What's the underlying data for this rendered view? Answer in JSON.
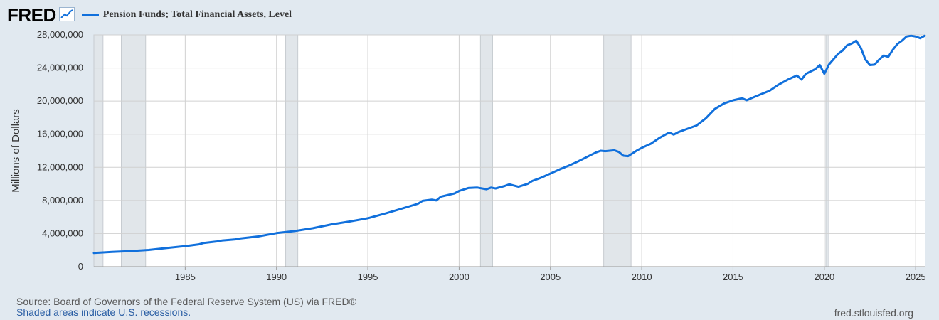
{
  "brand": {
    "logo_text": "FRED"
  },
  "header": {
    "series_label": "Pension Funds; Total Financial Assets, Level",
    "series_color": "#1170dc"
  },
  "footer": {
    "source": "Source: Board of Governors of the Federal Reserve System (US) via FRED®",
    "recession_note": "Shaded areas indicate U.S. recessions.",
    "site": "fred.stlouisfed.org"
  },
  "chart_data": {
    "type": "line",
    "title": "Pension Funds; Total Financial Assets, Level",
    "ylabel": "Millions of Dollars",
    "xlabel": "",
    "xlim": [
      "1980-01-01",
      "2025-07-01"
    ],
    "ylim": [
      0,
      28000000
    ],
    "yticks": [
      0,
      4000000,
      8000000,
      12000000,
      16000000,
      20000000,
      24000000,
      28000000
    ],
    "ytick_labels": [
      "0",
      "4,000,000",
      "8,000,000",
      "12,000,000",
      "16,000,000",
      "20,000,000",
      "24,000,000",
      "28,000,000"
    ],
    "xticks": [
      "1985-01-01",
      "1990-01-01",
      "1995-01-01",
      "2000-01-01",
      "2005-01-01",
      "2010-01-01",
      "2015-01-01",
      "2020-01-01",
      "2025-01-01"
    ],
    "xtick_labels": [
      "1985",
      "1990",
      "1995",
      "2000",
      "2005",
      "2010",
      "2015",
      "2020",
      "2025"
    ],
    "grid": true,
    "recessions": [
      [
        "1980-01-01",
        "1980-07-01"
      ],
      [
        "1981-07-01",
        "1982-11-01"
      ],
      [
        "1990-07-01",
        "1991-03-01"
      ],
      [
        "2001-03-01",
        "2001-11-01"
      ],
      [
        "2007-12-01",
        "2009-06-01"
      ],
      [
        "2020-02-01",
        "2020-04-01"
      ]
    ],
    "series": [
      {
        "name": "Pension Funds; Total Financial Assets, Level",
        "color": "#1170dc",
        "points": [
          [
            "1980-01-01",
            1650000
          ],
          [
            "1981-01-01",
            1780000
          ],
          [
            "1982-01-01",
            1880000
          ],
          [
            "1983-01-01",
            2020000
          ],
          [
            "1984-01-01",
            2250000
          ],
          [
            "1985-01-01",
            2480000
          ],
          [
            "1985-10-01",
            2700000
          ],
          [
            "1986-01-01",
            2850000
          ],
          [
            "1986-10-01",
            3050000
          ],
          [
            "1987-01-01",
            3150000
          ],
          [
            "1987-10-01",
            3300000
          ],
          [
            "1988-01-01",
            3400000
          ],
          [
            "1989-01-01",
            3650000
          ],
          [
            "1990-01-01",
            4050000
          ],
          [
            "1991-01-01",
            4300000
          ],
          [
            "1992-01-01",
            4650000
          ],
          [
            "1993-01-01",
            5100000
          ],
          [
            "1994-01-01",
            5450000
          ],
          [
            "1995-01-01",
            5850000
          ],
          [
            "1996-01-01",
            6450000
          ],
          [
            "1997-01-01",
            7100000
          ],
          [
            "1997-10-01",
            7600000
          ],
          [
            "1998-01-01",
            7950000
          ],
          [
            "1998-07-01",
            8100000
          ],
          [
            "1998-10-01",
            8000000
          ],
          [
            "1999-01-01",
            8450000
          ],
          [
            "1999-10-01",
            8850000
          ],
          [
            "2000-01-01",
            9150000
          ],
          [
            "2000-07-01",
            9500000
          ],
          [
            "2001-01-01",
            9550000
          ],
          [
            "2001-07-01",
            9350000
          ],
          [
            "2001-10-01",
            9550000
          ],
          [
            "2002-01-01",
            9450000
          ],
          [
            "2002-07-01",
            9750000
          ],
          [
            "2002-10-01",
            9950000
          ],
          [
            "2003-01-01",
            9800000
          ],
          [
            "2003-04-01",
            9650000
          ],
          [
            "2003-10-01",
            10000000
          ],
          [
            "2004-01-01",
            10350000
          ],
          [
            "2004-07-01",
            10750000
          ],
          [
            "2005-01-01",
            11250000
          ],
          [
            "2005-07-01",
            11750000
          ],
          [
            "2006-01-01",
            12200000
          ],
          [
            "2006-07-01",
            12700000
          ],
          [
            "2007-01-01",
            13250000
          ],
          [
            "2007-07-01",
            13800000
          ],
          [
            "2007-10-01",
            14000000
          ],
          [
            "2008-01-01",
            13950000
          ],
          [
            "2008-07-01",
            14050000
          ],
          [
            "2008-10-01",
            13850000
          ],
          [
            "2009-01-01",
            13400000
          ],
          [
            "2009-04-01",
            13350000
          ],
          [
            "2009-10-01",
            14050000
          ],
          [
            "2010-01-01",
            14350000
          ],
          [
            "2010-07-01",
            14850000
          ],
          [
            "2011-01-01",
            15600000
          ],
          [
            "2011-07-01",
            16200000
          ],
          [
            "2011-10-01",
            15950000
          ],
          [
            "2012-01-01",
            16250000
          ],
          [
            "2012-07-01",
            16650000
          ],
          [
            "2013-01-01",
            17050000
          ],
          [
            "2013-07-01",
            17900000
          ],
          [
            "2014-01-01",
            19050000
          ],
          [
            "2014-07-01",
            19700000
          ],
          [
            "2015-01-01",
            20100000
          ],
          [
            "2015-07-01",
            20350000
          ],
          [
            "2015-10-01",
            20100000
          ],
          [
            "2016-01-01",
            20350000
          ],
          [
            "2016-07-01",
            20800000
          ],
          [
            "2017-01-01",
            21250000
          ],
          [
            "2017-07-01",
            22000000
          ],
          [
            "2018-01-01",
            22600000
          ],
          [
            "2018-07-01",
            23100000
          ],
          [
            "2018-10-01",
            22600000
          ],
          [
            "2019-01-01",
            23300000
          ],
          [
            "2019-07-01",
            23850000
          ],
          [
            "2019-10-01",
            24350000
          ],
          [
            "2020-01-01",
            23300000
          ],
          [
            "2020-04-01",
            24400000
          ],
          [
            "2020-10-01",
            25700000
          ],
          [
            "2021-01-01",
            26100000
          ],
          [
            "2021-04-01",
            26750000
          ],
          [
            "2021-07-01",
            26950000
          ],
          [
            "2021-10-01",
            27300000
          ],
          [
            "2022-01-01",
            26400000
          ],
          [
            "2022-04-01",
            25000000
          ],
          [
            "2022-07-01",
            24350000
          ],
          [
            "2022-10-01",
            24400000
          ],
          [
            "2023-01-01",
            25000000
          ],
          [
            "2023-04-01",
            25500000
          ],
          [
            "2023-07-01",
            25350000
          ],
          [
            "2023-10-01",
            26200000
          ],
          [
            "2024-01-01",
            26900000
          ],
          [
            "2024-04-01",
            27300000
          ],
          [
            "2024-07-01",
            27800000
          ],
          [
            "2024-10-01",
            27900000
          ],
          [
            "2025-01-01",
            27800000
          ],
          [
            "2025-04-01",
            27600000
          ],
          [
            "2025-07-01",
            27900000
          ]
        ]
      }
    ]
  }
}
